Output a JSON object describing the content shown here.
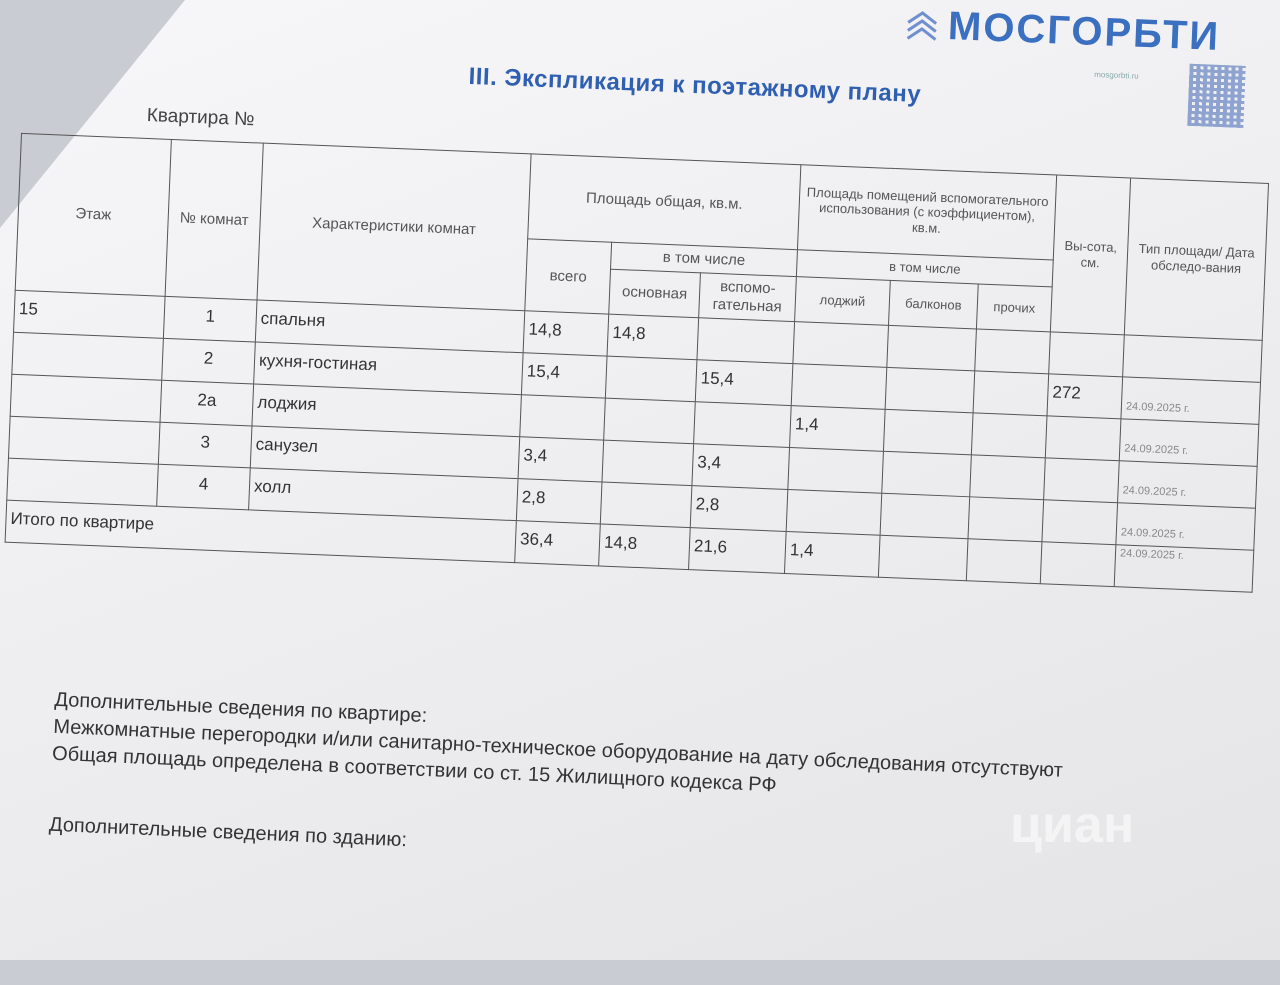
{
  "header": {
    "logo_text": "МОСГОРБТИ",
    "logo_site": "mosgorbti.ru",
    "accent_color": "#3b6fc0",
    "title": "III.  Экспликация к поэтажному плану",
    "apartment_label": "Квартира №"
  },
  "table": {
    "headers": {
      "floor": "Этаж",
      "room_no": "№ комнат",
      "characteristics": "Характеристики комнат",
      "total_area": "Площадь общая, кв.м.",
      "total": "всего",
      "including": "в том числе",
      "main": "основная",
      "auxiliary": "вспомо-гательная",
      "aux_use_area": "Площадь помещений вспомогательного использования (с коэффициентом), кв.м.",
      "including2": "в том числе",
      "loggias": "лоджий",
      "balconies": "балконов",
      "other": "прочих",
      "height": "Вы-сота, см.",
      "type_date": "Тип площади/ Дата обследо-вания"
    },
    "rows": [
      {
        "floor": "15",
        "no": "1",
        "name": "спальня",
        "total": "14,8",
        "main": "14,8",
        "aux": "",
        "loggia": "",
        "balcony": "",
        "other": "",
        "height": "",
        "date": ""
      },
      {
        "floor": "",
        "no": "2",
        "name": "кухня-гостиная",
        "total": "15,4",
        "main": "",
        "aux": "15,4",
        "loggia": "",
        "balcony": "",
        "other": "",
        "height": "272",
        "date": "24.09.2025 г."
      },
      {
        "floor": "",
        "no": "2а",
        "name": "лоджия",
        "total": "",
        "main": "",
        "aux": "",
        "loggia": "1,4",
        "balcony": "",
        "other": "",
        "height": "",
        "date": "24.09.2025 г."
      },
      {
        "floor": "",
        "no": "3",
        "name": "санузел",
        "total": "3,4",
        "main": "",
        "aux": "3,4",
        "loggia": "",
        "balcony": "",
        "other": "",
        "height": "",
        "date": "24.09.2025 г."
      },
      {
        "floor": "",
        "no": "4",
        "name": "холл",
        "total": "2,8",
        "main": "",
        "aux": "2,8",
        "loggia": "",
        "balcony": "",
        "other": "",
        "height": "",
        "date": "24.09.2025 г."
      }
    ],
    "total_row": {
      "label": "Итого по квартире",
      "total": "36,4",
      "main": "14,8",
      "aux": "21,6",
      "loggia": "1,4",
      "date": "24.09.2025 г."
    }
  },
  "info": {
    "apartment_heading": "Дополнительные сведения по квартире:",
    "line1": "Межкомнатные перегородки и/или санитарно-техническое оборудование на дату обследования отсутствуют",
    "line2": "Общая площадь определена в соответствии со ст. 15 Жилищного кодекса РФ",
    "building_heading": "Дополнительные сведения по зданию:"
  },
  "watermark": "циан"
}
